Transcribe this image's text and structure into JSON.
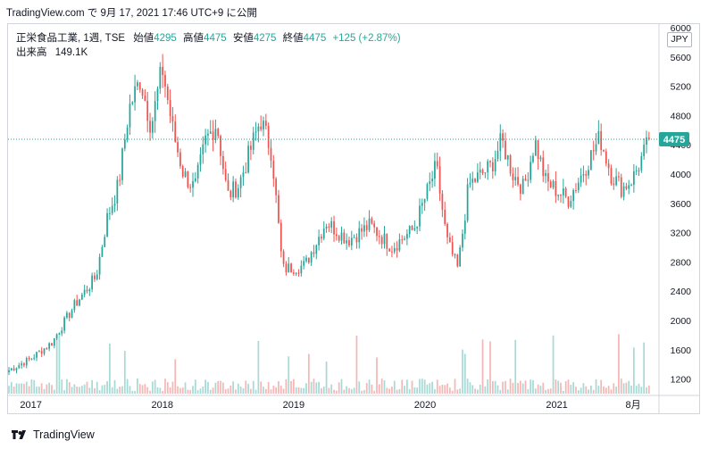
{
  "header": {
    "text": "TradingView.com で 9月 17, 2021 17:46 UTC+9 に公開"
  },
  "legend": {
    "symbol": "正栄食品工業, 1週, TSE",
    "open_label": "始値",
    "open": "4295",
    "high_label": "高値",
    "high": "4475",
    "low_label": "安値",
    "low": "4275",
    "close_label": "終値",
    "close": "4475",
    "change": "+125 (+2.87%)",
    "volume_label": "出来高",
    "volume": "149.1K"
  },
  "currency": "JPY",
  "footer": {
    "brand": "TradingView"
  },
  "colors": {
    "up": "#26a69a",
    "down": "#ef5350",
    "price_line": "#26a69a",
    "vol_up": "#a8dad5",
    "vol_down": "#f5b7b6"
  },
  "chart_data": {
    "type": "candlestick",
    "interval": "1週",
    "last_price": 4475,
    "ylim": [
      1000,
      6000
    ],
    "y_ticks": [
      1200,
      1600,
      2000,
      2400,
      2800,
      3200,
      3600,
      4000,
      4400,
      4800,
      5200,
      5600,
      6000
    ],
    "x_tick_labels": [
      "2017",
      "2018",
      "2019",
      "2020",
      "2021",
      "8月"
    ],
    "price_path": [
      [
        "2016-11",
        1320
      ],
      [
        "2017-01",
        1480
      ],
      [
        "2017-03",
        1700
      ],
      [
        "2017-05",
        2200
      ],
      [
        "2017-07",
        2600
      ],
      [
        "2017-08",
        3400
      ],
      [
        "2017-09",
        3850
      ],
      [
        "2017-10",
        4900
      ],
      [
        "2017-11",
        5300
      ],
      [
        "2017-12",
        4650
      ],
      [
        "2018-01",
        5450
      ],
      [
        "2018-02",
        4550
      ],
      [
        "2018-03",
        4000
      ],
      [
        "2018-04",
        3800
      ],
      [
        "2018-05",
        4450
      ],
      [
        "2018-06",
        4700
      ],
      [
        "2018-07",
        3700
      ],
      [
        "2018-08",
        3850
      ],
      [
        "2018-09",
        4300
      ],
      [
        "2018-10",
        4750
      ],
      [
        "2018-11",
        4300
      ],
      [
        "2018-12",
        2700
      ],
      [
        "2019-02",
        2750
      ],
      [
        "2019-04",
        3350
      ],
      [
        "2019-06",
        3100
      ],
      [
        "2019-08",
        3300
      ],
      [
        "2019-10",
        3000
      ],
      [
        "2019-12",
        3250
      ],
      [
        "2020-02",
        4100
      ],
      [
        "2020-03",
        3100
      ],
      [
        "2020-04",
        2700
      ],
      [
        "2020-05",
        3850
      ],
      [
        "2020-07",
        4100
      ],
      [
        "2020-08",
        4450
      ],
      [
        "2020-09",
        4000
      ],
      [
        "2020-10",
        3800
      ],
      [
        "2020-11",
        4450
      ],
      [
        "2020-12",
        3900
      ],
      [
        "2021-02",
        3650
      ],
      [
        "2021-03",
        3900
      ],
      [
        "2021-05",
        4500
      ],
      [
        "2021-06",
        4000
      ],
      [
        "2021-07",
        3800
      ],
      [
        "2021-08",
        3950
      ],
      [
        "2021-09",
        4475
      ]
    ]
  }
}
